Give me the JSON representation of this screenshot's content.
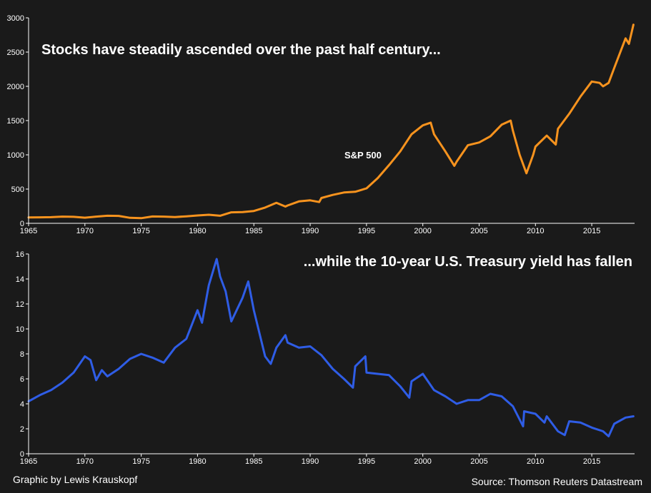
{
  "footer": {
    "credit": "Graphic by Lewis Krauskopf",
    "source": "Source: Thomson Reuters Datastream"
  },
  "colors": {
    "background": "#1a1a1a",
    "axis": "#ffffff",
    "sp500": "#f7931e",
    "treasury": "#2f5de6"
  },
  "chart_data": [
    {
      "type": "line",
      "title": "Stocks have steadily ascended over the past half century...",
      "xlabel": "",
      "ylabel": "",
      "xlim": [
        1965,
        2018.8
      ],
      "ylim": [
        0,
        3000
      ],
      "xticks": [
        1965,
        1970,
        1975,
        1980,
        1985,
        1990,
        1995,
        2000,
        2005,
        2010,
        2015
      ],
      "yticks": [
        0,
        500,
        1000,
        1500,
        2000,
        2500,
        3000
      ],
      "grid": false,
      "annotations": [
        {
          "text": "S&P 500",
          "x": 1995,
          "y": 1000
        }
      ],
      "series": [
        {
          "color": "#f7931e",
          "x": [
            1965,
            1966,
            1967,
            1968,
            1969,
            1970,
            1971,
            1972,
            1973,
            1974,
            1975,
            1976,
            1977,
            1978,
            1979,
            1980,
            1981,
            1982,
            1983,
            1984,
            1985,
            1986,
            1987,
            1987.8,
            1988,
            1989,
            1990,
            1990.8,
            1991,
            1992,
            1993,
            1994,
            1995,
            1996,
            1997,
            1998,
            1999,
            2000,
            2000.7,
            2001,
            2002,
            2002.8,
            2003,
            2004,
            2005,
            2006,
            2007,
            2007.8,
            2008,
            2008.6,
            2009.2,
            2009.8,
            2010,
            2011,
            2011.8,
            2012,
            2013,
            2014,
            2015,
            2015.7,
            2016,
            2016.5,
            2017,
            2018,
            2018.3,
            2018.7
          ],
          "y": [
            85,
            88,
            90,
            98,
            95,
            82,
            98,
            110,
            108,
            80,
            75,
            100,
            98,
            92,
            102,
            115,
            125,
            110,
            160,
            165,
            180,
            230,
            300,
            245,
            260,
            320,
            335,
            310,
            370,
            415,
            450,
            460,
            510,
            660,
            850,
            1050,
            1300,
            1430,
            1470,
            1300,
            1050,
            840,
            900,
            1140,
            1180,
            1270,
            1440,
            1500,
            1350,
            1000,
            730,
            1000,
            1120,
            1280,
            1150,
            1380,
            1600,
            1850,
            2070,
            2050,
            2000,
            2050,
            2270,
            2700,
            2620,
            2900
          ]
        }
      ]
    },
    {
      "type": "line",
      "title": "...while the 10-year U.S. Treasury yield has fallen",
      "xlabel": "",
      "ylabel": "",
      "xlim": [
        1965,
        2018.8
      ],
      "ylim": [
        0,
        16
      ],
      "xticks": [
        1965,
        1970,
        1975,
        1980,
        1985,
        1990,
        1995,
        2000,
        2005,
        2010,
        2015
      ],
      "yticks": [
        0,
        2,
        4,
        6,
        8,
        10,
        12,
        14,
        16
      ],
      "grid": false,
      "series": [
        {
          "color": "#2f5de6",
          "x": [
            1965,
            1966,
            1967,
            1968,
            1969,
            1970,
            1970.5,
            1971,
            1971.5,
            1972,
            1973,
            1974,
            1975,
            1976,
            1977,
            1978,
            1979,
            1980,
            1980.4,
            1980.8,
            1981,
            1981.7,
            1982,
            1982.5,
            1983,
            1984,
            1984.5,
            1985,
            1986,
            1986.5,
            1987,
            1987.8,
            1988,
            1989,
            1990,
            1991,
            1992,
            1993,
            1993.8,
            1994,
            1994.9,
            1995,
            1996,
            1997,
            1998,
            1998.8,
            1999,
            2000,
            2001,
            2002,
            2003,
            2004,
            2005,
            2006,
            2007,
            2008,
            2008.9,
            2009,
            2010,
            2010.8,
            2011,
            2012,
            2012.6,
            2013,
            2014,
            2015,
            2016,
            2016.5,
            2017,
            2018,
            2018.7
          ],
          "y": [
            4.2,
            4.7,
            5.1,
            5.7,
            6.5,
            7.8,
            7.5,
            5.9,
            6.7,
            6.2,
            6.8,
            7.6,
            8.0,
            7.7,
            7.3,
            8.5,
            9.2,
            11.5,
            10.5,
            12.5,
            13.5,
            15.6,
            14.2,
            13.0,
            10.6,
            12.5,
            13.8,
            11.5,
            7.8,
            7.2,
            8.5,
            9.5,
            8.9,
            8.5,
            8.6,
            7.9,
            6.8,
            6.0,
            5.3,
            7.0,
            7.8,
            6.5,
            6.4,
            6.3,
            5.4,
            4.5,
            5.8,
            6.4,
            5.1,
            4.6,
            4.0,
            4.3,
            4.3,
            4.8,
            4.6,
            3.8,
            2.2,
            3.4,
            3.2,
            2.5,
            3.0,
            1.8,
            1.5,
            2.6,
            2.5,
            2.1,
            1.8,
            1.4,
            2.4,
            2.9,
            3.0
          ]
        }
      ]
    }
  ]
}
